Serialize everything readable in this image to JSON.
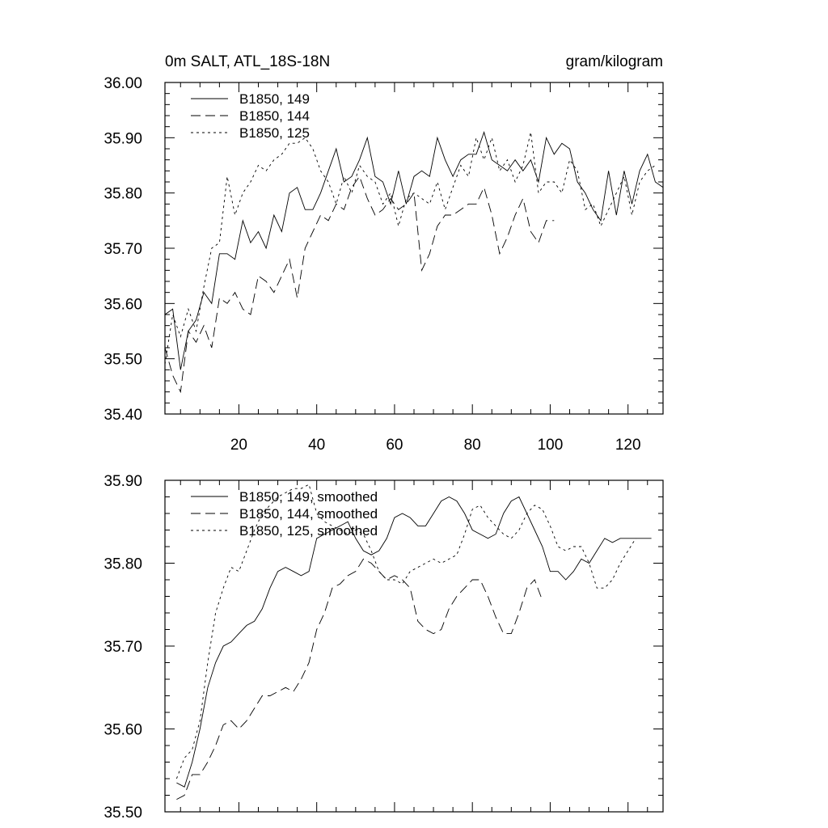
{
  "chart_data": [
    {
      "type": "line",
      "title_left": "0m SALT, ATL_18S-18N",
      "title_right": "gram/kilogram",
      "xlim": [
        1,
        129
      ],
      "ylim": [
        35.4,
        36.0
      ],
      "y_ticks": [
        "35.40",
        "35.50",
        "35.60",
        "35.70",
        "35.80",
        "35.90",
        "36.00"
      ],
      "x_ticks": [
        "20",
        "40",
        "60",
        "80",
        "100",
        "120"
      ],
      "legend_position": "top-left",
      "series": [
        {
          "name": "B1850, 149",
          "style": "solid",
          "x": [
            1,
            3,
            5,
            7,
            9,
            11,
            13,
            15,
            17,
            19,
            21,
            23,
            25,
            27,
            29,
            31,
            33,
            35,
            37,
            39,
            41,
            43,
            45,
            47,
            49,
            51,
            53,
            55,
            57,
            59,
            61,
            63,
            65,
            67,
            69,
            71,
            73,
            75,
            77,
            79,
            81,
            83,
            85,
            87,
            89,
            91,
            93,
            95,
            97,
            99,
            101,
            103,
            105,
            107,
            109,
            111,
            113,
            115,
            117,
            119,
            121,
            123,
            125,
            127,
            129
          ],
          "values": [
            35.58,
            35.59,
            35.48,
            35.55,
            35.57,
            35.62,
            35.6,
            35.69,
            35.69,
            35.68,
            35.75,
            35.71,
            35.73,
            35.7,
            35.76,
            35.73,
            35.8,
            35.81,
            35.77,
            35.77,
            35.8,
            35.84,
            35.88,
            35.82,
            35.83,
            35.86,
            35.9,
            35.83,
            35.82,
            35.78,
            35.84,
            35.78,
            35.83,
            35.84,
            35.83,
            35.9,
            35.86,
            35.83,
            35.86,
            35.87,
            35.87,
            35.91,
            35.86,
            35.85,
            35.84,
            35.86,
            35.84,
            35.86,
            35.82,
            35.9,
            35.87,
            35.89,
            35.88,
            35.82,
            35.8,
            35.77,
            35.75,
            35.84,
            35.76,
            35.84,
            35.78,
            35.84,
            35.87,
            35.82,
            35.81
          ]
        },
        {
          "name": "B1850, 144",
          "style": "dashed",
          "x": [
            1,
            3,
            5,
            7,
            9,
            11,
            13,
            15,
            17,
            19,
            21,
            23,
            25,
            27,
            29,
            31,
            33,
            35,
            37,
            39,
            41,
            43,
            45,
            47,
            49,
            51,
            53,
            55,
            57,
            59,
            61,
            63,
            65,
            67,
            69,
            71,
            73,
            75,
            77,
            79,
            81,
            83,
            85,
            87,
            89,
            91,
            93,
            95,
            97,
            99,
            101
          ],
          "values": [
            35.52,
            35.47,
            35.44,
            35.55,
            35.53,
            35.56,
            35.52,
            35.61,
            35.6,
            35.62,
            35.59,
            35.58,
            35.65,
            35.64,
            35.62,
            35.65,
            35.68,
            35.61,
            35.7,
            35.73,
            35.76,
            35.75,
            35.78,
            35.77,
            35.81,
            35.83,
            35.79,
            35.76,
            35.77,
            35.79,
            35.77,
            35.78,
            35.8,
            35.66,
            35.69,
            35.74,
            35.76,
            35.76,
            35.77,
            35.78,
            35.78,
            35.81,
            35.76,
            35.69,
            35.72,
            35.76,
            35.79,
            35.73,
            35.71,
            35.75,
            35.75
          ]
        },
        {
          "name": "B1850, 125",
          "style": "dotted",
          "x": [
            1,
            3,
            5,
            7,
            9,
            11,
            13,
            15,
            17,
            19,
            21,
            23,
            25,
            27,
            29,
            31,
            33,
            35,
            37,
            39,
            41,
            43,
            45,
            47,
            49,
            51,
            53,
            55,
            57,
            59,
            61,
            63,
            65,
            67,
            69,
            71,
            73,
            75,
            77,
            79,
            81,
            83,
            85,
            87,
            89,
            91,
            93,
            95,
            97,
            99,
            101,
            103,
            105,
            107,
            109,
            111,
            113,
            115,
            117,
            119,
            121,
            123,
            125,
            127
          ],
          "values": [
            35.49,
            35.58,
            35.54,
            35.59,
            35.55,
            35.63,
            35.7,
            35.71,
            35.83,
            35.76,
            35.8,
            35.82,
            35.85,
            35.84,
            35.86,
            35.87,
            35.89,
            35.89,
            35.9,
            35.88,
            35.84,
            35.82,
            35.78,
            35.83,
            35.8,
            35.85,
            35.83,
            35.82,
            35.78,
            35.8,
            35.74,
            35.79,
            35.8,
            35.79,
            35.78,
            35.82,
            35.77,
            35.81,
            35.85,
            35.83,
            35.9,
            35.86,
            35.9,
            35.84,
            35.86,
            35.82,
            35.85,
            35.91,
            35.8,
            35.82,
            35.82,
            35.8,
            35.86,
            35.84,
            35.77,
            35.78,
            35.74,
            35.77,
            35.8,
            35.83,
            35.76,
            35.82,
            35.84,
            35.85
          ]
        }
      ]
    },
    {
      "type": "line",
      "xlim": [
        1,
        129
      ],
      "ylim": [
        35.5,
        35.9
      ],
      "y_ticks": [
        "35.50",
        "35.60",
        "35.70",
        "35.80",
        "35.90"
      ],
      "legend_position": "top-left",
      "series": [
        {
          "name": "B1850, 149, smoothed",
          "style": "solid",
          "x": [
            4,
            6,
            8,
            10,
            12,
            14,
            16,
            18,
            20,
            22,
            24,
            26,
            28,
            30,
            32,
            34,
            36,
            38,
            40,
            42,
            44,
            46,
            48,
            50,
            52,
            54,
            56,
            58,
            60,
            62,
            64,
            66,
            68,
            70,
            72,
            74,
            76,
            78,
            80,
            82,
            84,
            86,
            88,
            90,
            92,
            94,
            96,
            98,
            100,
            102,
            104,
            106,
            108,
            110,
            112,
            114,
            116,
            118,
            120,
            122,
            124,
            126
          ],
          "values": [
            35.535,
            35.53,
            35.56,
            35.6,
            35.65,
            35.68,
            35.7,
            35.705,
            35.715,
            35.725,
            35.73,
            35.745,
            35.77,
            35.79,
            35.795,
            35.79,
            35.785,
            35.79,
            35.83,
            35.835,
            35.84,
            35.845,
            35.85,
            35.83,
            35.815,
            35.81,
            35.815,
            35.83,
            35.855,
            35.86,
            35.855,
            35.845,
            35.845,
            35.86,
            35.875,
            35.88,
            35.875,
            35.86,
            35.84,
            35.835,
            35.83,
            35.835,
            35.86,
            35.875,
            35.88,
            35.86,
            35.84,
            35.82,
            35.79,
            35.79,
            35.78,
            35.79,
            35.805,
            35.8,
            35.815,
            35.83,
            35.825,
            35.83,
            35.83,
            35.83,
            35.83,
            35.83
          ]
        },
        {
          "name": "B1850, 144, smoothed",
          "style": "dashed",
          "x": [
            4,
            6,
            8,
            10,
            12,
            14,
            16,
            18,
            20,
            22,
            24,
            26,
            28,
            30,
            32,
            34,
            36,
            38,
            40,
            42,
            44,
            46,
            48,
            50,
            52,
            54,
            56,
            58,
            60,
            62,
            64,
            66,
            68,
            70,
            72,
            74,
            76,
            78,
            80,
            82,
            84,
            86,
            88,
            90,
            92,
            94,
            96,
            98
          ],
          "values": [
            35.515,
            35.52,
            35.545,
            35.545,
            35.56,
            35.58,
            35.605,
            35.61,
            35.6,
            35.61,
            35.625,
            35.64,
            35.64,
            35.645,
            35.65,
            35.645,
            35.66,
            35.68,
            35.72,
            35.74,
            35.77,
            35.775,
            35.785,
            35.79,
            35.805,
            35.8,
            35.79,
            35.78,
            35.785,
            35.78,
            35.77,
            35.73,
            35.72,
            35.715,
            35.72,
            35.745,
            35.76,
            35.77,
            35.78,
            35.78,
            35.76,
            35.735,
            35.715,
            35.715,
            35.74,
            35.77,
            35.78,
            35.755
          ]
        },
        {
          "name": "B1850, 125, smoothed",
          "style": "dotted",
          "x": [
            4,
            6,
            8,
            10,
            12,
            14,
            16,
            18,
            20,
            22,
            24,
            26,
            28,
            30,
            32,
            34,
            36,
            38,
            40,
            42,
            44,
            46,
            48,
            50,
            52,
            54,
            56,
            58,
            60,
            62,
            64,
            66,
            68,
            70,
            72,
            74,
            76,
            78,
            80,
            82,
            84,
            86,
            88,
            90,
            92,
            94,
            96,
            98,
            100,
            102,
            104,
            106,
            108,
            110,
            112,
            114,
            116,
            118,
            120,
            122
          ],
          "values": [
            35.54,
            35.565,
            35.575,
            35.61,
            35.68,
            35.74,
            35.77,
            35.795,
            35.79,
            35.815,
            35.84,
            35.86,
            35.87,
            35.88,
            35.885,
            35.89,
            35.89,
            35.895,
            35.86,
            35.85,
            35.845,
            35.84,
            35.835,
            35.84,
            35.835,
            35.815,
            35.79,
            35.78,
            35.78,
            35.775,
            35.79,
            35.795,
            35.8,
            35.805,
            35.8,
            35.805,
            35.81,
            35.835,
            35.865,
            35.87,
            35.855,
            35.845,
            35.835,
            35.83,
            35.84,
            35.86,
            35.87,
            35.865,
            35.845,
            35.82,
            35.815,
            35.82,
            35.82,
            35.8,
            35.77,
            35.77,
            35.78,
            35.8,
            35.815,
            35.83
          ]
        }
      ]
    }
  ]
}
